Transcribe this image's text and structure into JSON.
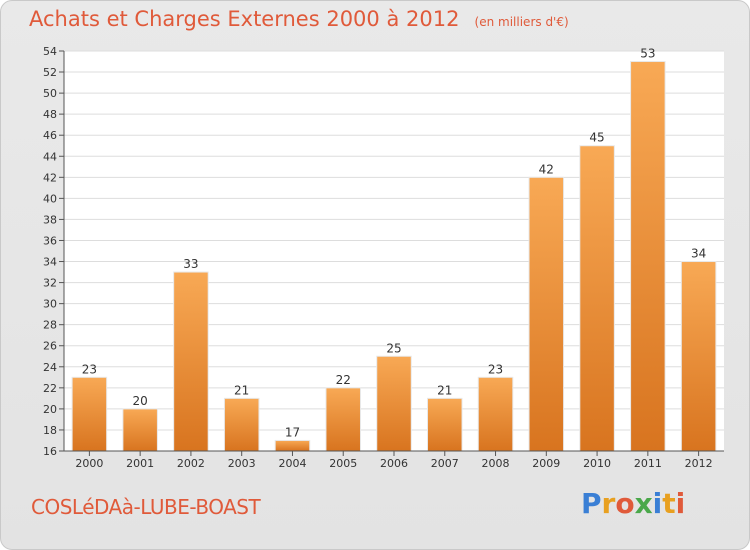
{
  "header": {
    "title": "Achats et Charges Externes 2000 à 2012",
    "unit": "(en milliers d'€)"
  },
  "footer": {
    "commune": "COSLéDAà-LUBE-BOAST",
    "brand_letters": [
      "P",
      "r",
      "o",
      "x",
      "i",
      "t",
      "i"
    ],
    "brand_colors": [
      "#3a7fd5",
      "#e8a020",
      "#e05a3a",
      "#4aa84a",
      "#3a7fd5",
      "#e8a020",
      "#e05a3a"
    ]
  },
  "chart_data": {
    "type": "bar",
    "title": "Achats et Charges Externes 2000 à 2012",
    "ylabel": "en milliers d'€",
    "xlabel": "",
    "categories": [
      "2000",
      "2001",
      "2002",
      "2003",
      "2004",
      "2005",
      "2006",
      "2007",
      "2008",
      "2009",
      "2010",
      "2011",
      "2012"
    ],
    "values": [
      23,
      20,
      33,
      21,
      17,
      22,
      25,
      21,
      23,
      42,
      45,
      53,
      34
    ],
    "ylim": [
      16,
      54
    ],
    "yticks": [
      16,
      18,
      20,
      22,
      24,
      26,
      28,
      30,
      32,
      34,
      36,
      38,
      40,
      42,
      44,
      46,
      48,
      50,
      52,
      54
    ],
    "grid": true,
    "bar_color_top": "#f8a955",
    "bar_color_bottom": "#d8741f"
  }
}
